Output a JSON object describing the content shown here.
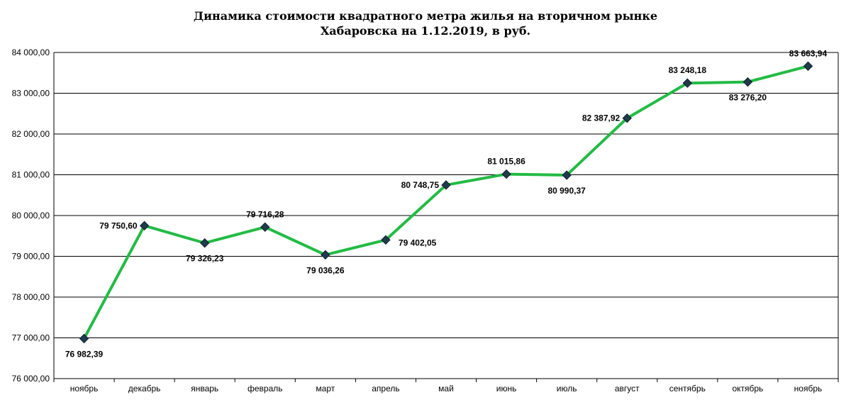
{
  "chart_data": {
    "type": "line",
    "title": "Динамика стоимости квадратного метра жилья на вторичном рынке",
    "subtitle": "Хабаровска на 1.12.2019, в руб.",
    "categories": [
      "ноябрь",
      "декабрь",
      "январь",
      "февраль",
      "март",
      "апрель",
      "май",
      "июнь",
      "июль",
      "август",
      "сентябрь",
      "октябрь",
      "ноябрь"
    ],
    "series": [
      {
        "values": [
          76982.39,
          79750.6,
          79326.23,
          79716.28,
          79036.26,
          79402.05,
          80748.75,
          81015.86,
          80990.37,
          82387.92,
          83248.18,
          83276.2,
          83663.94
        ],
        "labels": [
          "76 982,39",
          "79 750,60",
          "79 326,23",
          "79 716,28",
          "79 036,26",
          "79 402,05",
          "80 748,75",
          "81 015,86",
          "80 990,37",
          "82 387,92",
          "83 248,18",
          "83 276,20",
          "83 663,94"
        ],
        "label_positions": [
          "below",
          "left",
          "below",
          "above",
          "below",
          "right",
          "left",
          "above",
          "below",
          "left",
          "above",
          "below",
          "above"
        ]
      }
    ],
    "ylim": [
      76000,
      84000
    ],
    "yticks": [
      76000,
      77000,
      78000,
      79000,
      80000,
      81000,
      82000,
      83000,
      84000
    ],
    "ytick_labels": [
      "76 000,00",
      "77 000,00",
      "78 000,00",
      "79 000,00",
      "80 000,00",
      "81 000,00",
      "82 000,00",
      "83 000,00",
      "84 000,00"
    ],
    "xlabel": "",
    "ylabel": "",
    "grid": true,
    "legend": "none",
    "line_color": "#22bb44",
    "marker_color": "#1f3b4d"
  }
}
